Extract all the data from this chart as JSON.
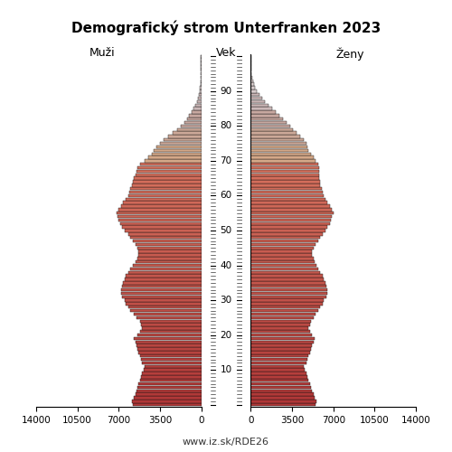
{
  "title": "Demografický strom Unterfranken 2023",
  "label_men": "Muži",
  "label_women": "Ženy",
  "label_age": "Vek",
  "footer": "www.iz.sk/RDE26",
  "xlim": 14000,
  "ages": [
    0,
    1,
    2,
    3,
    4,
    5,
    6,
    7,
    8,
    9,
    10,
    11,
    12,
    13,
    14,
    15,
    16,
    17,
    18,
    19,
    20,
    21,
    22,
    23,
    24,
    25,
    26,
    27,
    28,
    29,
    30,
    31,
    32,
    33,
    34,
    35,
    36,
    37,
    38,
    39,
    40,
    41,
    42,
    43,
    44,
    45,
    46,
    47,
    48,
    49,
    50,
    51,
    52,
    53,
    54,
    55,
    56,
    57,
    58,
    59,
    60,
    61,
    62,
    63,
    64,
    65,
    66,
    67,
    68,
    69,
    70,
    71,
    72,
    73,
    74,
    75,
    76,
    77,
    78,
    79,
    80,
    81,
    82,
    83,
    84,
    85,
    86,
    87,
    88,
    89,
    90,
    91,
    92,
    93,
    94,
    95,
    96,
    97,
    98,
    99,
    100
  ],
  "men": [
    5800,
    5900,
    5700,
    5600,
    5500,
    5400,
    5300,
    5200,
    5100,
    5000,
    4900,
    4800,
    5000,
    5100,
    5200,
    5300,
    5400,
    5500,
    5600,
    5700,
    5400,
    5200,
    5000,
    5100,
    5200,
    5500,
    5700,
    6000,
    6200,
    6400,
    6500,
    6700,
    6800,
    6800,
    6700,
    6600,
    6500,
    6400,
    6200,
    6000,
    5800,
    5600,
    5400,
    5300,
    5300,
    5400,
    5600,
    5800,
    6000,
    6200,
    6500,
    6700,
    6900,
    7000,
    7100,
    7200,
    7000,
    6800,
    6600,
    6400,
    6200,
    6100,
    6000,
    5900,
    5800,
    5700,
    5600,
    5500,
    5400,
    5200,
    4800,
    4500,
    4200,
    4000,
    3800,
    3500,
    3200,
    2800,
    2400,
    2000,
    1700,
    1400,
    1200,
    1000,
    800,
    650,
    500,
    380,
    280,
    200,
    130,
    90,
    60,
    40,
    25,
    15,
    8,
    5,
    3,
    1,
    1
  ],
  "women": [
    5500,
    5600,
    5400,
    5300,
    5200,
    5100,
    5000,
    4900,
    4800,
    4700,
    4600,
    4500,
    4700,
    4800,
    4900,
    5000,
    5100,
    5200,
    5300,
    5400,
    5200,
    5000,
    4900,
    5000,
    5100,
    5300,
    5500,
    5700,
    5900,
    6100,
    6200,
    6400,
    6500,
    6500,
    6400,
    6300,
    6200,
    6100,
    5900,
    5700,
    5600,
    5400,
    5300,
    5200,
    5200,
    5300,
    5500,
    5700,
    5900,
    6100,
    6300,
    6500,
    6700,
    6800,
    6900,
    7000,
    6900,
    6700,
    6500,
    6300,
    6200,
    6100,
    6000,
    5900,
    5900,
    5800,
    5800,
    5800,
    5800,
    5700,
    5500,
    5300,
    5100,
    4900,
    4800,
    4700,
    4500,
    4200,
    3900,
    3600,
    3300,
    3000,
    2700,
    2400,
    2100,
    1800,
    1500,
    1200,
    950,
    720,
    520,
    360,
    240,
    160,
    100,
    65,
    40,
    22,
    12,
    6,
    2
  ],
  "background_color": "#ffffff",
  "xtick_vals_left": [
    -14000,
    -10500,
    -7000,
    -3500,
    0
  ],
  "xtick_vals_right": [
    0,
    3500,
    7000,
    10500,
    14000
  ],
  "xtick_labels_left": [
    "14000",
    "10500",
    "7000",
    "3500",
    "0"
  ],
  "xtick_labels_right": [
    "0",
    "3500",
    "7000",
    "10500",
    "14000"
  ],
  "age_yticks": [
    10,
    20,
    30,
    40,
    50,
    60,
    70,
    80,
    90
  ]
}
